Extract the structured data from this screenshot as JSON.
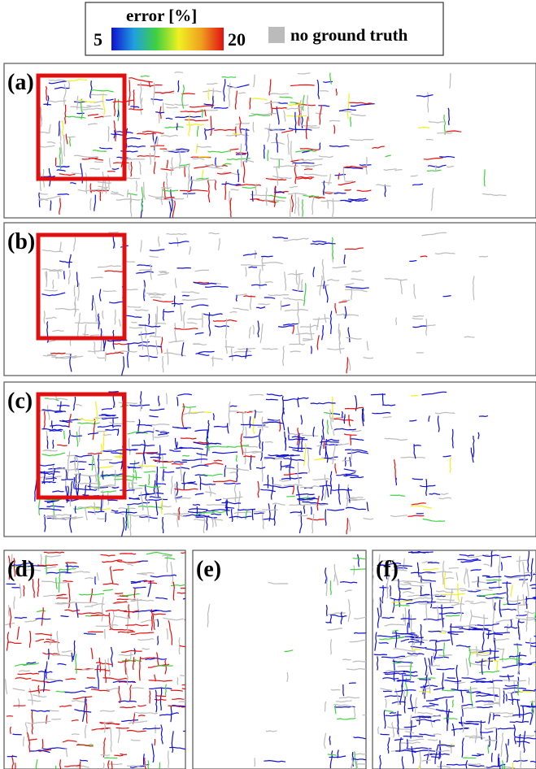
{
  "legend": {
    "title": "error [%]",
    "min": 5,
    "max": 20,
    "no_data_label": "no ground truth",
    "colormap": [
      "#1010d0",
      "#20a0e0",
      "#40d040",
      "#f0f020",
      "#f0a020",
      "#e01010"
    ],
    "no_data_color": "#bbbbbb"
  },
  "panels": [
    {
      "label": "(a)"
    },
    {
      "label": "(b)"
    },
    {
      "label": "(c)"
    },
    {
      "label": "(d)"
    },
    {
      "label": "(e)"
    },
    {
      "label": "(f)"
    }
  ]
}
